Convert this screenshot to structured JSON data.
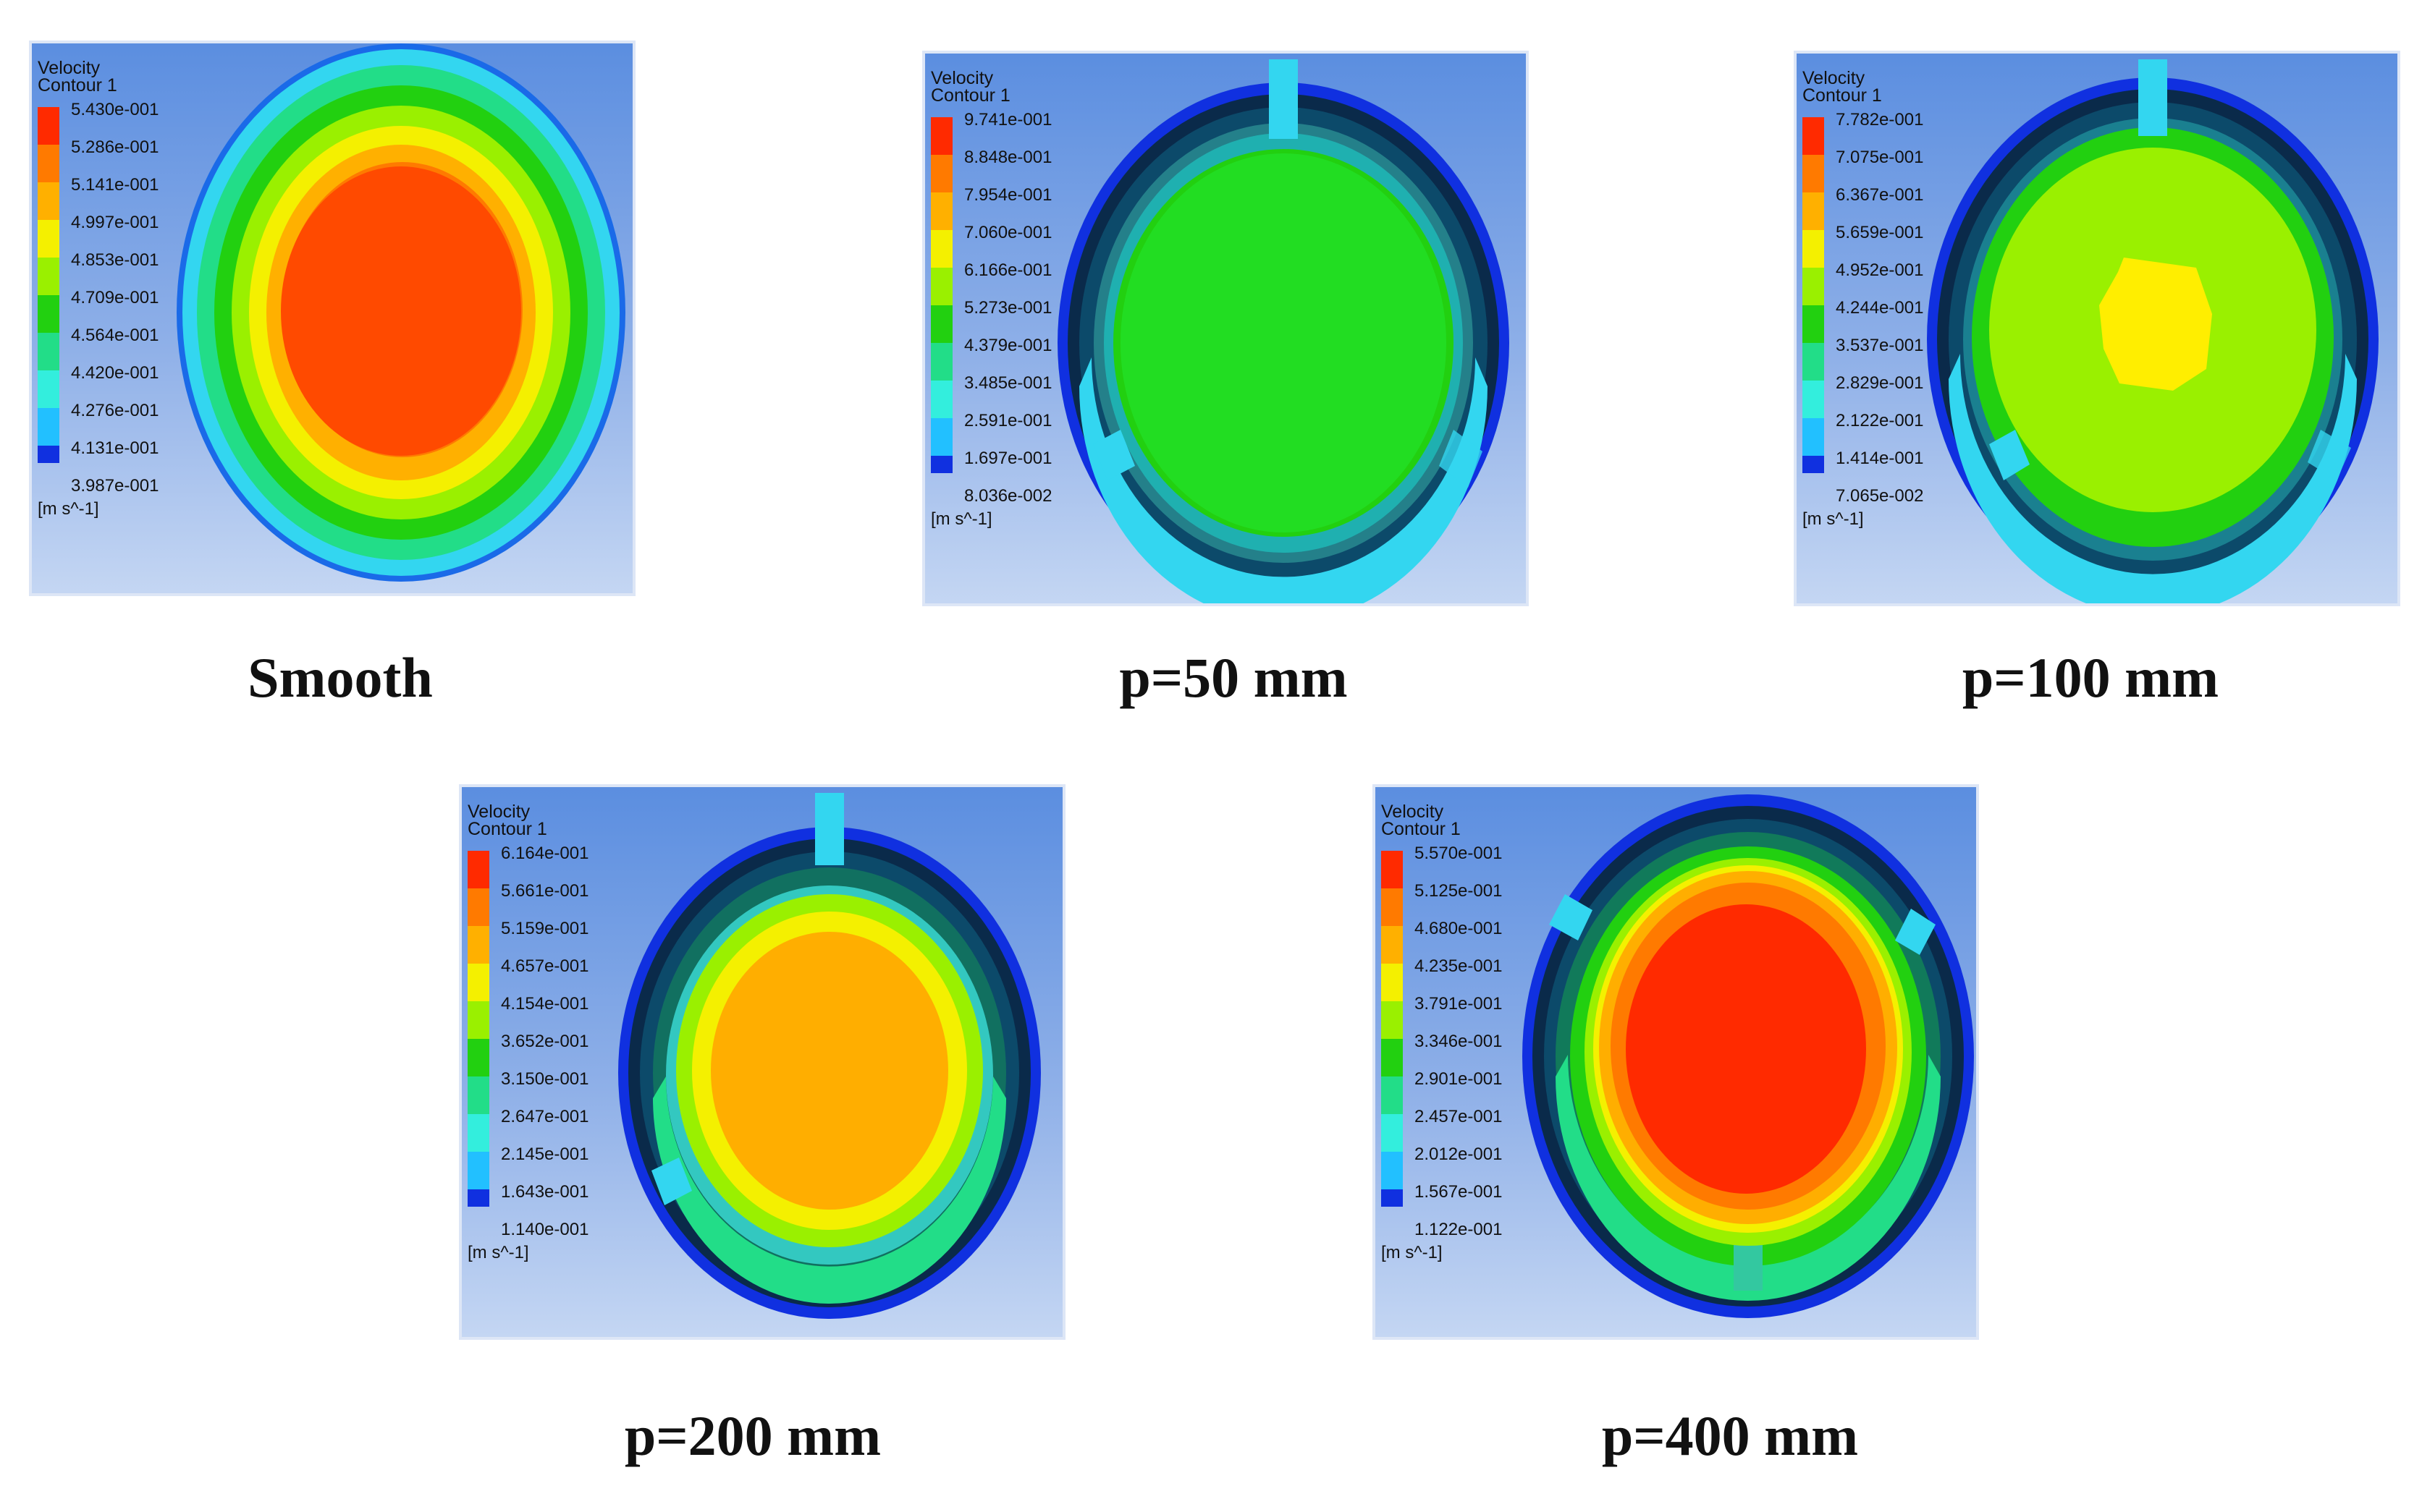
{
  "figure": {
    "panels": [
      {
        "id": "smooth",
        "caption": "Smooth",
        "legend_title_1": "Velocity",
        "legend_title_2": "Contour 1",
        "unit": "[m s^-1]",
        "levels": [
          "5.430e-001",
          "5.286e-001",
          "5.141e-001",
          "4.997e-001",
          "4.853e-001",
          "4.709e-001",
          "4.564e-001",
          "4.420e-001",
          "4.276e-001",
          "4.131e-001",
          "3.987e-001"
        ],
        "colors": [
          "#ff2a00",
          "#ff7a00",
          "#ffb000",
          "#f4f000",
          "#9af000",
          "#22d010",
          "#22dd88",
          "#33eedd",
          "#22c0ff",
          "#1a80f0",
          "#1030e0"
        ]
      },
      {
        "id": "p50",
        "caption": "p=50 mm",
        "legend_title_1": "Velocity",
        "legend_title_2": "Contour 1",
        "unit": "[m s^-1]",
        "levels": [
          "9.741e-001",
          "8.848e-001",
          "7.954e-001",
          "7.060e-001",
          "6.166e-001",
          "5.273e-001",
          "4.379e-001",
          "3.485e-001",
          "2.591e-001",
          "1.697e-001",
          "8.036e-002"
        ],
        "colors": [
          "#ff2a00",
          "#ff7a00",
          "#ffb000",
          "#f4f000",
          "#9af000",
          "#22d010",
          "#22dd88",
          "#33eedd",
          "#22c0ff",
          "#1a80f0",
          "#1030e0"
        ]
      },
      {
        "id": "p100",
        "caption": "p=100 mm",
        "legend_title_1": "Velocity",
        "legend_title_2": "Contour 1",
        "unit": "[m s^-1]",
        "levels": [
          "7.782e-001",
          "7.075e-001",
          "6.367e-001",
          "5.659e-001",
          "4.952e-001",
          "4.244e-001",
          "3.537e-001",
          "2.829e-001",
          "2.122e-001",
          "1.414e-001",
          "7.065e-002"
        ],
        "colors": [
          "#ff2a00",
          "#ff7a00",
          "#ffb000",
          "#f4f000",
          "#9af000",
          "#22d010",
          "#22dd88",
          "#33eedd",
          "#22c0ff",
          "#1a80f0",
          "#1030e0"
        ]
      },
      {
        "id": "p200",
        "caption": "p=200 mm",
        "legend_title_1": "Velocity",
        "legend_title_2": "Contour 1",
        "unit": "[m s^-1]",
        "levels": [
          "6.164e-001",
          "5.661e-001",
          "5.159e-001",
          "4.657e-001",
          "4.154e-001",
          "3.652e-001",
          "3.150e-001",
          "2.647e-001",
          "2.145e-001",
          "1.643e-001",
          "1.140e-001"
        ],
        "colors": [
          "#ff2a00",
          "#ff7a00",
          "#ffb000",
          "#f4f000",
          "#9af000",
          "#22d010",
          "#22dd88",
          "#33eedd",
          "#22c0ff",
          "#1a80f0",
          "#1030e0"
        ]
      },
      {
        "id": "p400",
        "caption": "p=400 mm",
        "legend_title_1": "Velocity",
        "legend_title_2": "Contour 1",
        "unit": "[m s^-1]",
        "levels": [
          "5.570e-001",
          "5.125e-001",
          "4.680e-001",
          "4.235e-001",
          "3.791e-001",
          "3.346e-001",
          "2.901e-001",
          "2.457e-001",
          "2.012e-001",
          "1.567e-001",
          "1.122e-001"
        ],
        "colors": [
          "#ff2a00",
          "#ff7a00",
          "#ffb000",
          "#f4f000",
          "#9af000",
          "#22d010",
          "#22dd88",
          "#33eedd",
          "#22c0ff",
          "#1a80f0",
          "#1030e0"
        ]
      }
    ]
  }
}
